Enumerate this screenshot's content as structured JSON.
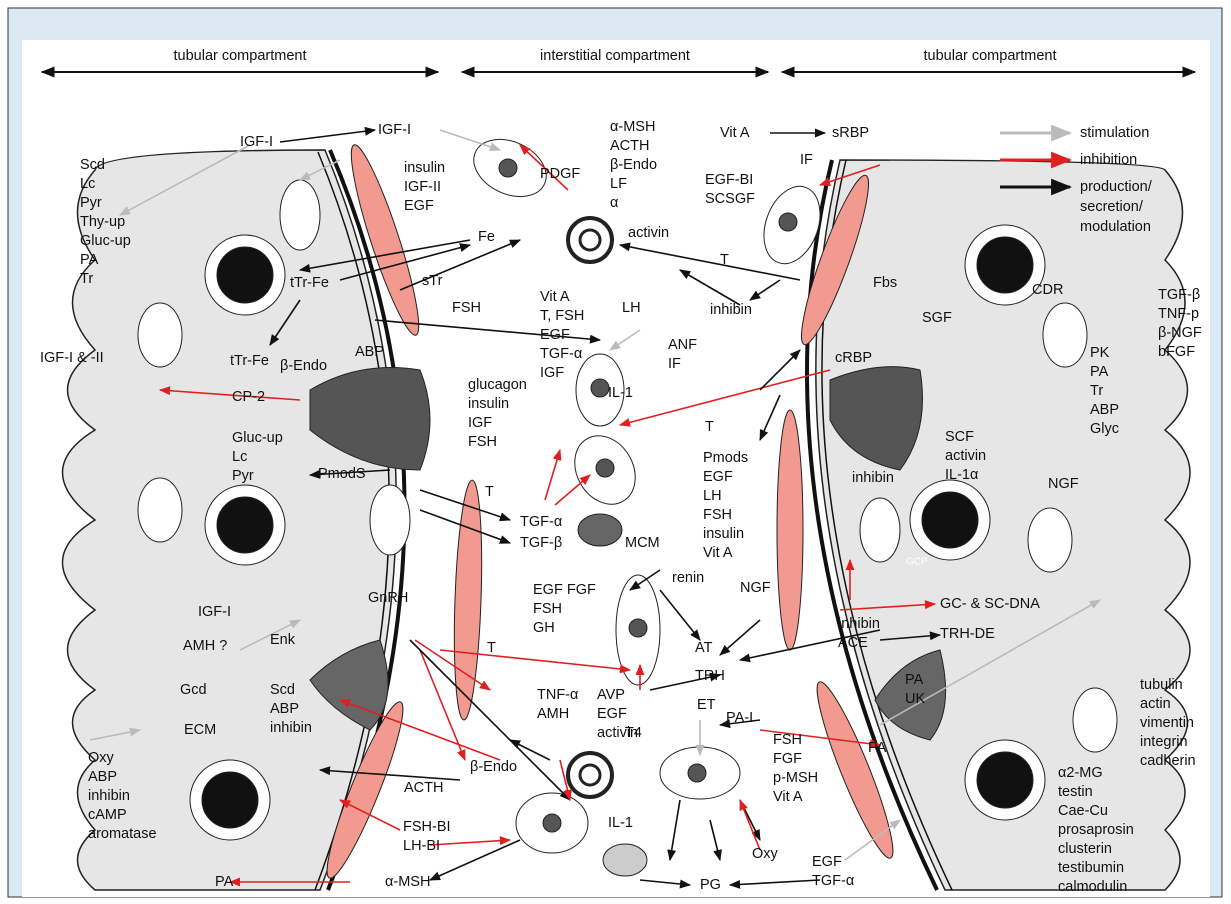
{
  "header": {
    "left": "tubular compartment",
    "center": "interstitial compartment",
    "right": "tubular compartment"
  },
  "legend": [
    [
      "stimulation"
    ],
    [
      "inhibition"
    ],
    [
      "production/",
      "secretion/",
      "modulation"
    ]
  ],
  "labels": [
    [
      "IGF-I"
    ],
    [
      "IGF-I"
    ],
    [
      "Scd",
      "Lc",
      "Pyr",
      "Thy-up",
      "Gluc-up",
      "PA",
      "Tr"
    ],
    [
      "insulin",
      "IGF-II",
      "EGF"
    ],
    [
      "PDGF"
    ],
    [
      "α-MSH",
      "ACTH",
      "β-Endo",
      "LF",
      "α"
    ],
    [
      "Vit A"
    ],
    [
      "sRBP"
    ],
    [
      "IF"
    ],
    [
      "EGF-BI",
      "SCSGF"
    ],
    [
      "Fe"
    ],
    [
      "activin"
    ],
    [
      "T"
    ],
    [
      "tTr-Fe"
    ],
    [
      "sTr"
    ],
    [
      "Fbs"
    ],
    [
      "CDR"
    ],
    [
      "TGF-β",
      "TNF-p",
      "β-NGF",
      "bFGF"
    ],
    [
      "Vit A",
      "T, FSH",
      "EGF",
      "TGF-α",
      "IGF"
    ],
    [
      "FSH"
    ],
    [
      "LH"
    ],
    [
      "inhibin"
    ],
    [
      "SGF"
    ],
    [
      "IGF-I & -II"
    ],
    [
      "tTr-Fe"
    ],
    [
      "β-Endo"
    ],
    [
      "ABP"
    ],
    [
      "ANF",
      "IF"
    ],
    [
      "cRBP"
    ],
    [
      "PK",
      "PA",
      "Tr",
      "ABP",
      "Glyc"
    ],
    [
      "glucagon",
      "insulin",
      "IGF",
      "FSH"
    ],
    [
      "IL-1"
    ],
    [
      "CP-2"
    ],
    [
      "T"
    ],
    [
      "Gluc-up",
      "Lc",
      "Pyr"
    ],
    [
      "SCF",
      "activin",
      "IL-1α"
    ],
    [
      "Pmods",
      "EGF",
      "LH",
      "FSH",
      "insulin",
      "Vit A"
    ],
    [
      "PmodS"
    ],
    [
      "inhibin"
    ],
    [
      "NGF"
    ],
    [
      "T"
    ],
    [
      "TGF-α"
    ],
    [
      "TGF-β"
    ],
    [
      "MCM"
    ],
    [
      "GCP"
    ],
    [
      "renin"
    ],
    [
      "EGF FGF",
      "FSH",
      "GH"
    ],
    [
      "NGF"
    ],
    [
      "GnRH"
    ],
    [
      "IGF-I"
    ],
    [
      "inhibin",
      "ACE"
    ],
    [
      "GC- & SC-DNA"
    ],
    [
      "TRH-DE"
    ],
    [
      "AMH ?"
    ],
    [
      "Enk"
    ],
    [
      "T"
    ],
    [
      "AT"
    ],
    [
      "TRH"
    ],
    [
      "PA",
      "UK"
    ],
    [
      "tubulin",
      "actin",
      "vimentin",
      "integrin",
      "cadherin"
    ],
    [
      "Gcd"
    ],
    [
      "Scd",
      "ABP",
      "inhibin"
    ],
    [
      "TNF-α",
      "AMH"
    ],
    [
      "AVP",
      "EGF",
      "activin"
    ],
    [
      "ET"
    ],
    [
      "PA-I"
    ],
    [
      "T4"
    ],
    [
      "PA"
    ],
    [
      "FSH",
      "FGF",
      "p-MSH",
      "Vit A"
    ],
    [
      "ECM"
    ],
    [
      "β-Endo"
    ],
    [
      "ACTH"
    ],
    [
      "α2-MG",
      "testin",
      "Cae-Cu",
      "prosaprosin",
      "clusterin",
      "testibumin",
      "calmodulin"
    ],
    [
      "Oxy",
      "ABP",
      "inhibin",
      "cAMP",
      "aromatase"
    ],
    [
      "FSH-BI",
      "LH-BI"
    ],
    [
      "IL-1"
    ],
    [
      "Oxy"
    ],
    [
      "EGF",
      "TGF-α"
    ],
    [
      "PA"
    ],
    [
      "α-MSH"
    ],
    [
      "PG"
    ]
  ]
}
